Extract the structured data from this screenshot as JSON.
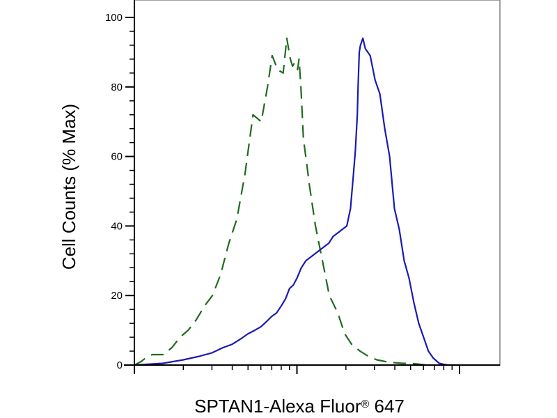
{
  "colors": {
    "frame": "#808080",
    "axis": "#000000",
    "background": "#ffffff"
  },
  "chart_data": {
    "type": "area",
    "title": "",
    "xlabel_main": "SPTAN1-Alexa Fluor",
    "xlabel_reg": "®",
    "xlabel_num": " 647",
    "ylabel": "Cell Counts (% Max)",
    "x_scale": "log",
    "xlim": [
      100,
      10000
    ],
    "ylim": [
      0,
      100
    ],
    "yticks": [
      0,
      20,
      40,
      60,
      80,
      100
    ],
    "ytick_labels": [
      "0",
      "20",
      "40",
      "60",
      "80",
      "100"
    ],
    "xticks_major": [
      100,
      1000,
      10000
    ],
    "x_tick_labels_shown": false,
    "grid": false,
    "legend": "none",
    "series": [
      {
        "style": "dashed",
        "color": "#1f6b1f",
        "x": [
          100,
          110,
          117,
          129,
          151,
          170,
          191,
          214,
          240,
          270,
          302,
          339,
          381,
          427,
          479,
          537,
          603,
          659,
          704,
          761,
          823,
          866,
          911,
          940,
          969,
          989,
          1009,
          1030,
          1058,
          1096,
          1148,
          1191,
          1300,
          1434,
          1582,
          1782,
          1966,
          2168,
          2443,
          2753,
          3102,
          3496,
          3939,
          4438,
          5000,
          5500,
          6000,
          6400
        ],
        "y": [
          0,
          1,
          2,
          3,
          3,
          5,
          8,
          10,
          13,
          17,
          20,
          26,
          35,
          42,
          55,
          72,
          70,
          80,
          89,
          85,
          84,
          94,
          88,
          86,
          87,
          86,
          85,
          88,
          80,
          65,
          58,
          52,
          40,
          30,
          20,
          15,
          9,
          6,
          4,
          2.5,
          1.5,
          1,
          0.7,
          0.5,
          0.5,
          0.3,
          0.1,
          0
        ]
      },
      {
        "style": "solid",
        "color": "#1a1ab4",
        "x": [
          100,
          150,
          200,
          250,
          300,
          350,
          400,
          450,
          500,
          550,
          600,
          650,
          700,
          750,
          800,
          850,
          900,
          950,
          1000,
          1064,
          1135,
          1211,
          1291,
          1377,
          1468,
          1566,
          1670,
          1781,
          1899,
          2026,
          2134,
          2227,
          2289,
          2352,
          2376,
          2400,
          2417,
          2459,
          2545,
          2634,
          2727,
          2822,
          3023,
          3238,
          3468,
          3715,
          3979,
          4262,
          4565,
          4890,
          5238,
          5610,
          6009,
          6437,
          6895,
          7500,
          8000,
          8500,
          9000,
          9500,
          10000
        ],
        "y": [
          0,
          0.5,
          1.5,
          2.5,
          3.5,
          5,
          6,
          7.5,
          9,
          10,
          11,
          12.5,
          14,
          15,
          17,
          19,
          22,
          23,
          25,
          28,
          30,
          31,
          32,
          33,
          34,
          35,
          37,
          38,
          39,
          40,
          45,
          55,
          62,
          72,
          80,
          86,
          90,
          92,
          94,
          91,
          90,
          89,
          82,
          78,
          68,
          60,
          45,
          39,
          30,
          25,
          18,
          12,
          8,
          4,
          2,
          0.5,
          0.2,
          0,
          0,
          0,
          0
        ]
      }
    ]
  }
}
